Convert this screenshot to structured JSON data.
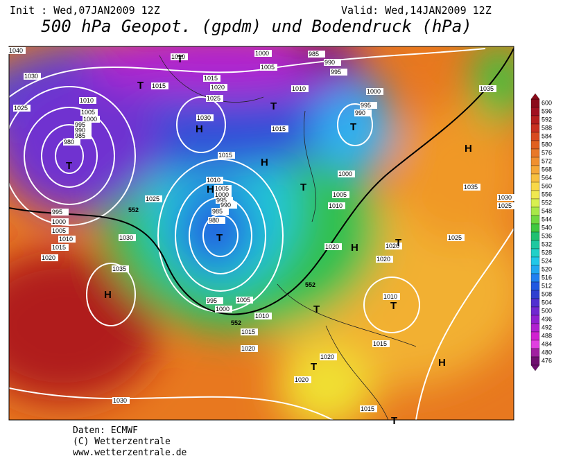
{
  "header": {
    "init": "Init : Wed,07JAN2009 12Z",
    "valid": "Valid: Wed,14JAN2009 12Z",
    "title": "500 hPa Geopot. (gpdm) und Bodendruck (hPa)"
  },
  "map": {
    "isobar_labels": [
      "1040",
      "1030",
      "1025",
      "1010",
      "1005",
      "1000",
      "995",
      "990",
      "985",
      "980",
      "995",
      "1000",
      "1005",
      "1010",
      "1015",
      "1020",
      "1030",
      "1035",
      "1025",
      "1010",
      "1015",
      "1015",
      "1020",
      "1025",
      "1030",
      "1015",
      "1010",
      "1005",
      "1000",
      "995",
      "990",
      "985",
      "980",
      "995",
      "1000",
      "1005",
      "1010",
      "1015",
      "1020",
      "1000",
      "1005",
      "1010",
      "1015",
      "990",
      "995",
      "1000",
      "995",
      "990",
      "985",
      "1000",
      "1005",
      "1010",
      "1020",
      "1020",
      "1020",
      "1010",
      "1015",
      "1020",
      "1020",
      "1015",
      "1030",
      "1035",
      "1035",
      "1030",
      "1025",
      "1025"
    ],
    "contour_labels": [
      "552",
      "552",
      "552"
    ],
    "centers": [
      "T",
      "T",
      "T",
      "T",
      "H",
      "H",
      "T",
      "T",
      "T",
      "H",
      "H",
      "T",
      "H",
      "T",
      "T",
      "T",
      "T",
      "H",
      "H"
    ]
  },
  "legend": {
    "levels": [
      600,
      596,
      592,
      588,
      584,
      580,
      576,
      572,
      568,
      564,
      560,
      556,
      552,
      548,
      544,
      540,
      536,
      532,
      528,
      524,
      520,
      516,
      512,
      508,
      504,
      500,
      496,
      492,
      488,
      484,
      480,
      476
    ],
    "colors": [
      "#8b0a1a",
      "#a01020",
      "#b51e1e",
      "#c83020",
      "#d84a20",
      "#e06020",
      "#e87828",
      "#f09030",
      "#f5a838",
      "#f8c040",
      "#f8d848",
      "#f0e850",
      "#d8f050",
      "#a8e848",
      "#70d840",
      "#40c840",
      "#20c070",
      "#20c8a0",
      "#20d0c8",
      "#20c8e8",
      "#20a8f0",
      "#2080f0",
      "#2058e0",
      "#3040d0",
      "#5030d0",
      "#7028d0",
      "#9020d0",
      "#b020d0",
      "#d020d0",
      "#e040e0",
      "#a020a0",
      "#701070"
    ]
  },
  "footer": {
    "source": "Daten: ECMWF",
    "copyright": "(C) Wetterzentrale",
    "url": "www.wetterzentrale.de"
  }
}
